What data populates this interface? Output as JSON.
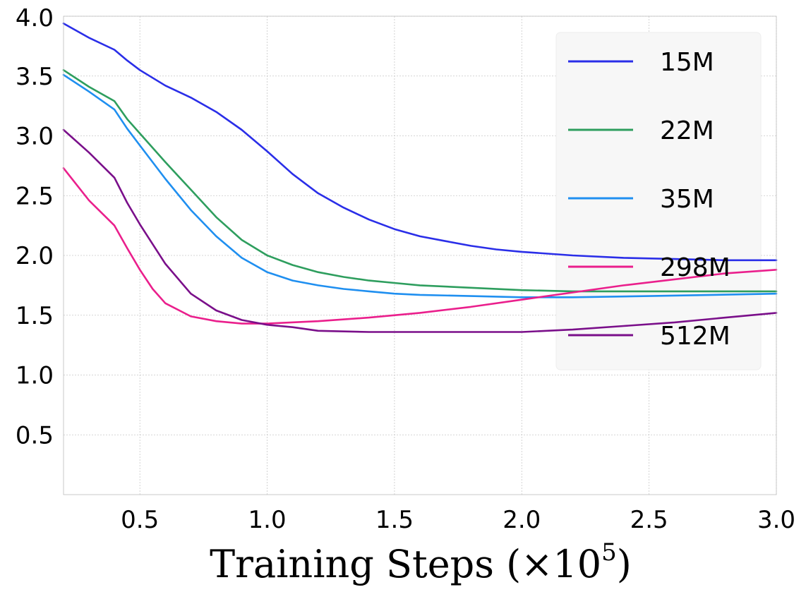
{
  "chart_data": {
    "type": "line",
    "title": "",
    "xlabel": "Training Steps (×10",
    "xlabel_exponent": "5",
    "xlabel_suffix": ")",
    "ylabel": "",
    "xlim": [
      0.2,
      3.0
    ],
    "ylim": [
      0.0,
      4.0
    ],
    "grid": true,
    "legend_position": "top-right",
    "x_ticks": [
      0.5,
      1.0,
      1.5,
      2.0,
      2.5,
      3.0
    ],
    "x_tick_labels": [
      "0.5",
      "1.0",
      "1.5",
      "2.0",
      "2.5",
      "3.0"
    ],
    "y_ticks": [
      0.5,
      1.0,
      1.5,
      2.0,
      2.5,
      3.0,
      3.5,
      4.0
    ],
    "y_tick_labels": [
      "0.5",
      "1.0",
      "1.5",
      "2.0",
      "2.5",
      "3.0",
      "3.5",
      "4.0"
    ],
    "series": [
      {
        "name": "15M",
        "color": "#2a2ee8",
        "x": [
          0.2,
          0.3,
          0.4,
          0.45,
          0.5,
          0.6,
          0.7,
          0.8,
          0.9,
          1.0,
          1.1,
          1.2,
          1.3,
          1.4,
          1.5,
          1.6,
          1.7,
          1.8,
          1.9,
          2.0,
          2.2,
          2.4,
          2.6,
          2.8,
          3.0
        ],
        "values": [
          3.94,
          3.82,
          3.72,
          3.63,
          3.55,
          3.42,
          3.32,
          3.2,
          3.05,
          2.87,
          2.68,
          2.52,
          2.4,
          2.3,
          2.22,
          2.16,
          2.12,
          2.08,
          2.05,
          2.03,
          2.0,
          1.98,
          1.97,
          1.96,
          1.96
        ]
      },
      {
        "name": "22M",
        "color": "#2e9e5e",
        "x": [
          0.2,
          0.3,
          0.4,
          0.45,
          0.5,
          0.6,
          0.7,
          0.8,
          0.9,
          1.0,
          1.1,
          1.2,
          1.3,
          1.4,
          1.5,
          1.6,
          1.8,
          2.0,
          2.2,
          2.5,
          3.0
        ],
        "values": [
          3.55,
          3.41,
          3.29,
          3.14,
          3.02,
          2.78,
          2.55,
          2.32,
          2.13,
          2.0,
          1.92,
          1.86,
          1.82,
          1.79,
          1.77,
          1.75,
          1.73,
          1.71,
          1.7,
          1.7,
          1.7
        ]
      },
      {
        "name": "35M",
        "color": "#1f8ff0",
        "x": [
          0.2,
          0.3,
          0.4,
          0.45,
          0.5,
          0.6,
          0.7,
          0.8,
          0.9,
          1.0,
          1.1,
          1.2,
          1.3,
          1.4,
          1.5,
          1.6,
          1.8,
          2.0,
          2.2,
          2.5,
          3.0
        ],
        "values": [
          3.51,
          3.37,
          3.22,
          3.06,
          2.92,
          2.64,
          2.38,
          2.16,
          1.98,
          1.86,
          1.79,
          1.75,
          1.72,
          1.7,
          1.68,
          1.67,
          1.66,
          1.65,
          1.65,
          1.66,
          1.68
        ]
      },
      {
        "name": "298M",
        "color": "#ea1f8c",
        "x": [
          0.2,
          0.3,
          0.4,
          0.45,
          0.5,
          0.55,
          0.6,
          0.7,
          0.8,
          0.9,
          1.0,
          1.2,
          1.4,
          1.6,
          1.8,
          2.0,
          2.2,
          2.4,
          2.6,
          2.8,
          3.0
        ],
        "values": [
          2.73,
          2.46,
          2.25,
          2.06,
          1.88,
          1.72,
          1.6,
          1.49,
          1.45,
          1.43,
          1.43,
          1.45,
          1.48,
          1.52,
          1.57,
          1.63,
          1.69,
          1.75,
          1.8,
          1.85,
          1.88
        ]
      },
      {
        "name": "512M",
        "color": "#7a0f8a",
        "x": [
          0.2,
          0.3,
          0.4,
          0.45,
          0.5,
          0.6,
          0.7,
          0.8,
          0.9,
          1.0,
          1.1,
          1.2,
          1.4,
          1.6,
          1.8,
          2.0,
          2.2,
          2.4,
          2.6,
          2.8,
          3.0
        ],
        "values": [
          3.05,
          2.86,
          2.65,
          2.44,
          2.26,
          1.93,
          1.68,
          1.54,
          1.46,
          1.42,
          1.4,
          1.37,
          1.36,
          1.36,
          1.36,
          1.36,
          1.38,
          1.41,
          1.44,
          1.48,
          1.52
        ]
      }
    ]
  }
}
